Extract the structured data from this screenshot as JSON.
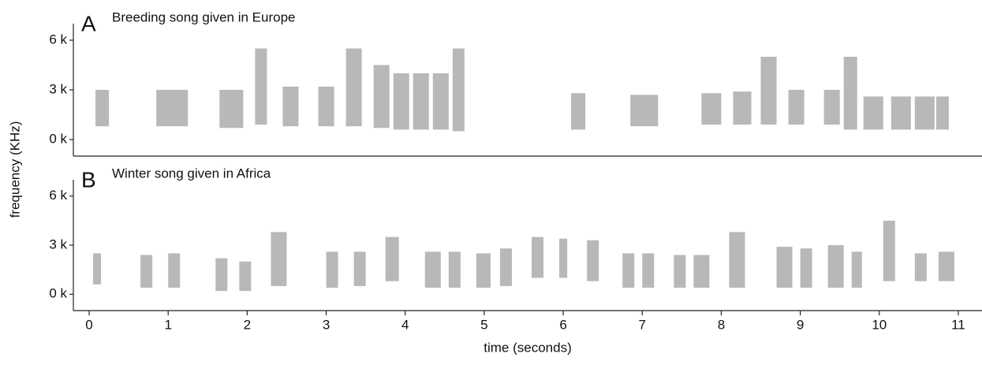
{
  "chart_data": [
    {
      "type": "spectrogram",
      "panel_label": "A",
      "title": "Breeding song given in Europe",
      "ylim": [
        -1000,
        7000
      ],
      "yticks": [
        {
          "value": 0,
          "label": "0 k"
        },
        {
          "value": 3000,
          "label": "3 k"
        },
        {
          "value": 6000,
          "label": "6 k"
        }
      ],
      "xlim": [
        -0.2,
        11.3
      ],
      "color": "#000000",
      "segments": [
        [
          0.08,
          0.25,
          800,
          3000
        ],
        [
          0.85,
          1.25,
          800,
          3000
        ],
        [
          1.65,
          1.95,
          700,
          3000
        ],
        [
          2.1,
          2.25,
          900,
          5500
        ],
        [
          2.45,
          2.65,
          800,
          3200
        ],
        [
          2.9,
          3.1,
          800,
          3200
        ],
        [
          3.25,
          3.45,
          800,
          5500
        ],
        [
          3.6,
          3.8,
          700,
          4500
        ],
        [
          3.85,
          4.05,
          600,
          4000
        ],
        [
          4.1,
          4.3,
          600,
          4000
        ],
        [
          4.35,
          4.55,
          600,
          4000
        ],
        [
          4.6,
          4.75,
          500,
          5500
        ],
        [
          6.1,
          6.28,
          600,
          2800
        ],
        [
          6.85,
          7.2,
          800,
          2700
        ],
        [
          7.75,
          8.0,
          900,
          2800
        ],
        [
          8.15,
          8.38,
          900,
          2900
        ],
        [
          8.5,
          8.7,
          900,
          5000
        ],
        [
          8.85,
          9.05,
          900,
          3000
        ],
        [
          9.3,
          9.5,
          900,
          3000
        ],
        [
          9.55,
          9.72,
          600,
          5000
        ],
        [
          9.8,
          10.05,
          600,
          2600
        ],
        [
          10.15,
          10.4,
          600,
          2600
        ],
        [
          10.45,
          10.7,
          600,
          2600
        ],
        [
          10.72,
          10.88,
          600,
          2600
        ]
      ]
    },
    {
      "type": "spectrogram",
      "panel_label": "B",
      "title": "Winter song given in Africa",
      "ylim": [
        -1000,
        7000
      ],
      "yticks": [
        {
          "value": 0,
          "label": "0 k"
        },
        {
          "value": 3000,
          "label": "3 k"
        },
        {
          "value": 6000,
          "label": "6 k"
        }
      ],
      "xlim": [
        -0.2,
        11.3
      ],
      "xticks": [
        0,
        1,
        2,
        3,
        4,
        5,
        6,
        7,
        8,
        9,
        10,
        11
      ],
      "x_label": "time (seconds)",
      "y_label": "frequency (KHz)",
      "color": "#000000",
      "segments": [
        [
          0.05,
          0.15,
          600,
          2500
        ],
        [
          0.65,
          0.8,
          400,
          2400
        ],
        [
          1.0,
          1.15,
          400,
          2500
        ],
        [
          1.6,
          1.75,
          200,
          2200
        ],
        [
          1.9,
          2.05,
          200,
          2000
        ],
        [
          2.3,
          2.5,
          500,
          3800
        ],
        [
          3.0,
          3.15,
          400,
          2600
        ],
        [
          3.35,
          3.5,
          500,
          2600
        ],
        [
          3.75,
          3.92,
          800,
          3500
        ],
        [
          4.25,
          4.45,
          400,
          2600
        ],
        [
          4.55,
          4.7,
          400,
          2600
        ],
        [
          4.9,
          5.08,
          400,
          2500
        ],
        [
          5.2,
          5.35,
          500,
          2800
        ],
        [
          5.6,
          5.75,
          1000,
          3500
        ],
        [
          5.95,
          6.05,
          1000,
          3400
        ],
        [
          6.3,
          6.45,
          800,
          3300
        ],
        [
          6.75,
          6.9,
          400,
          2500
        ],
        [
          7.0,
          7.15,
          400,
          2500
        ],
        [
          7.4,
          7.55,
          400,
          2400
        ],
        [
          7.65,
          7.85,
          400,
          2400
        ],
        [
          8.1,
          8.3,
          400,
          3800
        ],
        [
          8.7,
          8.9,
          400,
          2900
        ],
        [
          9.0,
          9.15,
          400,
          2800
        ],
        [
          9.35,
          9.55,
          400,
          3000
        ],
        [
          9.65,
          9.78,
          400,
          2600
        ],
        [
          10.05,
          10.2,
          800,
          4500
        ],
        [
          10.45,
          10.6,
          800,
          2500
        ],
        [
          10.75,
          10.95,
          800,
          2600
        ]
      ]
    }
  ]
}
